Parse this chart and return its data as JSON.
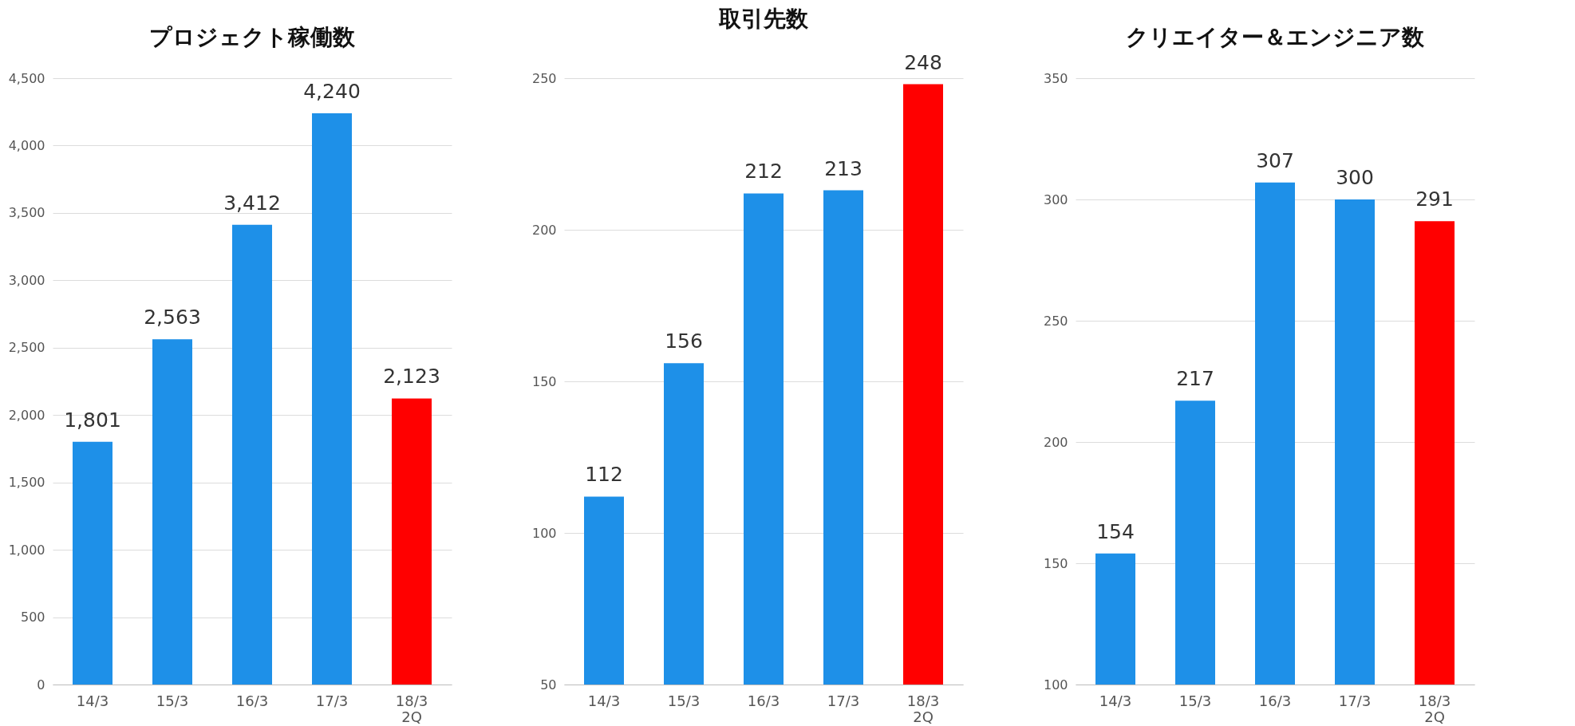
{
  "chart_data": [
    {
      "type": "bar",
      "title": "プロジェクト稼働数",
      "categories": [
        "14/3",
        "15/3",
        "16/3",
        "17/3",
        "18/3\n2Q"
      ],
      "values": [
        1801,
        2563,
        3412,
        4240,
        2123
      ],
      "colors": [
        "#1e90e8",
        "#1e90e8",
        "#1e90e8",
        "#1e90e8",
        "#ff0000"
      ],
      "ylim": [
        0,
        4500
      ],
      "yticks": [
        0,
        500,
        {
          "value": 1000,
          "label": "1,000"
        },
        {
          "value": 1500,
          "label": "1,500"
        },
        {
          "value": 2000,
          "label": "2,000"
        },
        {
          "value": 2500,
          "label": "2,500"
        },
        {
          "value": 3000,
          "label": "3,000"
        },
        {
          "value": 3500,
          "label": "3,500"
        },
        {
          "value": 4000,
          "label": "4,000"
        },
        {
          "value": 4500,
          "label": "4,500"
        }
      ],
      "value_labels": [
        "1,801",
        "2,563",
        "3,412",
        "4,240",
        "2,123"
      ],
      "grid": "y"
    },
    {
      "type": "bar",
      "title": "取引先数",
      "categories": [
        "14/3",
        "15/3",
        "16/3",
        "17/3",
        "18/3\n2Q"
      ],
      "values": [
        112,
        156,
        212,
        213,
        248
      ],
      "colors": [
        "#1e90e8",
        "#1e90e8",
        "#1e90e8",
        "#1e90e8",
        "#ff0000"
      ],
      "ylim": [
        50,
        250
      ],
      "yticks": [
        50,
        100,
        150,
        200,
        250
      ],
      "data_labels": true,
      "grid": "y"
    },
    {
      "type": "bar",
      "title": "クリエイター＆エンジニア数",
      "categories": [
        "14/3",
        "15/3",
        "16/3",
        "17/3",
        "18/3\n2Q"
      ],
      "values": [
        154,
        217,
        307,
        300,
        291
      ],
      "colors": [
        "#1e90e8",
        "#1e90e8",
        "#1e90e8",
        "#1e90e8",
        "#ff0000"
      ],
      "ylim": [
        100,
        350
      ],
      "yticks": [
        100,
        150,
        200,
        250,
        300,
        350
      ],
      "data_labels": true,
      "grid": "y"
    }
  ]
}
